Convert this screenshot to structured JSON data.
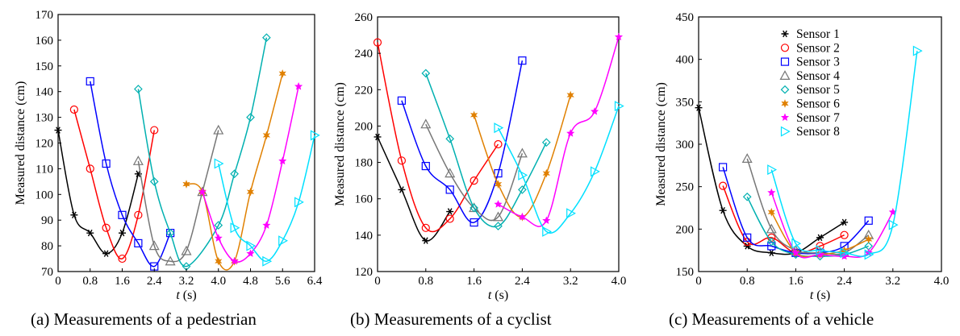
{
  "series_colors": [
    "#000000",
    "#ff0000",
    "#0000ff",
    "#777777",
    "#00b0b0",
    "#e08000",
    "#ff00ff",
    "#00e0ff"
  ],
  "chart_data": [
    {
      "type": "line",
      "caption": "(a) Measurements of a pedestrian",
      "xlabel": "t (s)",
      "ylabel": "Measured distance (cm)",
      "xlim": [
        0,
        6.4
      ],
      "ylim": [
        70,
        170
      ],
      "xticks": [
        "0",
        "0.8",
        "1.6",
        "2.4",
        "3.2",
        "4.0",
        "4.8",
        "5.6",
        "6.4"
      ],
      "yticks": [
        "70",
        "80",
        "90",
        "100",
        "110",
        "120",
        "130",
        "140",
        "150",
        "160",
        "170"
      ],
      "legend": null,
      "series": [
        {
          "marker": "star6",
          "x": [
            0.0,
            0.4,
            0.8,
            1.2,
            1.6,
            2.0
          ],
          "y": [
            125,
            92,
            85,
            77,
            85,
            108
          ]
        },
        {
          "marker": "circle",
          "x": [
            0.4,
            0.8,
            1.2,
            1.6,
            2.0,
            2.4
          ],
          "y": [
            133,
            110,
            87,
            75,
            92,
            125
          ]
        },
        {
          "marker": "square",
          "x": [
            0.8,
            1.2,
            1.6,
            2.0,
            2.4,
            2.8
          ],
          "y": [
            144,
            112,
            92,
            81,
            72,
            85
          ]
        },
        {
          "marker": "triangle-up",
          "x": [
            2.0,
            2.4,
            2.8,
            3.2,
            3.6,
            4.0
          ],
          "y": [
            113,
            80,
            74,
            78,
            101,
            125
          ]
        },
        {
          "marker": "diamond",
          "x": [
            2.0,
            2.4,
            2.8,
            3.2,
            4.0,
            4.4,
            4.8,
            5.2
          ],
          "y": [
            141,
            105,
            85,
            72,
            88,
            108,
            130,
            161
          ]
        },
        {
          "marker": "star",
          "x": [
            3.2,
            3.6,
            4.0,
            4.4,
            4.8,
            5.2,
            5.6
          ],
          "y": [
            104,
            101,
            74,
            74,
            101,
            123,
            147
          ]
        },
        {
          "marker": "star5",
          "x": [
            3.6,
            4.0,
            4.4,
            4.8,
            5.2,
            5.6,
            6.0
          ],
          "y": [
            101,
            83,
            74,
            77,
            88,
            113,
            142
          ]
        },
        {
          "marker": "triangle-right",
          "x": [
            4.0,
            4.4,
            4.8,
            5.2,
            5.6,
            6.0,
            6.4
          ],
          "y": [
            112,
            87,
            80,
            74,
            82,
            97,
            123
          ]
        }
      ]
    },
    {
      "type": "line",
      "caption": "(b) Measurements of a cyclist",
      "xlabel": "t (s)",
      "ylabel": "Measured distance (cm)",
      "xlim": [
        0,
        4.0
      ],
      "ylim": [
        120,
        260
      ],
      "xticks": [
        "0",
        "0.8",
        "1.6",
        "2.4",
        "3.2",
        "4.0"
      ],
      "yticks": [
        "120",
        "140",
        "160",
        "180",
        "200",
        "220",
        "240",
        "260"
      ],
      "legend": null,
      "series": [
        {
          "marker": "star6",
          "x": [
            0.0,
            0.4,
            0.8,
            1.2
          ],
          "y": [
            194,
            165,
            137,
            153
          ]
        },
        {
          "marker": "circle",
          "x": [
            0.0,
            0.4,
            0.8,
            1.2,
            1.6,
            2.0
          ],
          "y": [
            246,
            181,
            144,
            149,
            170,
            190
          ]
        },
        {
          "marker": "square",
          "x": [
            0.4,
            0.8,
            1.2,
            1.6,
            2.0,
            2.4
          ],
          "y": [
            214,
            178,
            165,
            147,
            174,
            236
          ]
        },
        {
          "marker": "triangle-up",
          "x": [
            0.8,
            1.2,
            1.6,
            2.0,
            2.4
          ],
          "y": [
            201,
            174,
            155,
            150,
            185
          ]
        },
        {
          "marker": "diamond",
          "x": [
            0.8,
            1.2,
            1.6,
            2.0,
            2.4,
            2.8
          ],
          "y": [
            229,
            193,
            155,
            145,
            165,
            191
          ]
        },
        {
          "marker": "star",
          "x": [
            1.6,
            2.0,
            2.4,
            2.8,
            3.2
          ],
          "y": [
            206,
            168,
            150,
            174,
            217
          ]
        },
        {
          "marker": "star5",
          "x": [
            2.0,
            2.4,
            2.8,
            3.2,
            3.6,
            4.0
          ],
          "y": [
            157,
            150,
            148,
            196,
            208,
            249
          ]
        },
        {
          "marker": "triangle-right",
          "x": [
            2.0,
            2.4,
            2.8,
            3.2,
            3.6,
            4.0
          ],
          "y": [
            199,
            173,
            142,
            152,
            175,
            211
          ]
        }
      ]
    },
    {
      "type": "line",
      "caption": "(c) Measurements of a vehicle",
      "xlabel": "t (s)",
      "ylabel": "Measured distance (cm)",
      "xlim": [
        0,
        4.0
      ],
      "ylim": [
        150,
        450
      ],
      "xticks": [
        "0",
        "0.8",
        "1.6",
        "2.4",
        "3.2",
        "4.0"
      ],
      "yticks": [
        "150",
        "200",
        "250",
        "300",
        "350",
        "400",
        "450"
      ],
      "legend": {
        "placement": "top-right",
        "entries": [
          "Sensor 1",
          "Sensor 2",
          "Sensor 3",
          "Sensor 4",
          "Sensor 5",
          "Sensor 6",
          "Sensor 7",
          "Sensor 8"
        ]
      },
      "series": [
        {
          "marker": "star6",
          "x": [
            0.0,
            0.4,
            0.8,
            1.2,
            1.6,
            2.0,
            2.4
          ],
          "y": [
            343,
            222,
            180,
            172,
            172,
            190,
            208
          ]
        },
        {
          "marker": "circle",
          "x": [
            0.4,
            0.8,
            1.2,
            1.6,
            2.0,
            2.4
          ],
          "y": [
            251,
            185,
            190,
            172,
            180,
            193
          ]
        },
        {
          "marker": "square",
          "x": [
            0.4,
            0.8,
            1.2,
            1.6,
            2.0,
            2.4,
            2.8
          ],
          "y": [
            273,
            190,
            180,
            172,
            172,
            180,
            210
          ]
        },
        {
          "marker": "triangle-up",
          "x": [
            0.8,
            1.2,
            1.6,
            2.0,
            2.4,
            2.8
          ],
          "y": [
            283,
            200,
            175,
            172,
            172,
            193
          ]
        },
        {
          "marker": "diamond",
          "x": [
            0.8,
            1.2,
            1.6,
            2.0,
            2.4,
            2.8
          ],
          "y": [
            238,
            185,
            170,
            168,
            170,
            180
          ]
        },
        {
          "marker": "star",
          "x": [
            1.2,
            1.6,
            2.0,
            2.4,
            2.8
          ],
          "y": [
            220,
            172,
            170,
            175,
            188
          ]
        },
        {
          "marker": "star5",
          "x": [
            1.2,
            1.6,
            2.0,
            2.4,
            2.8,
            3.2
          ],
          "y": [
            243,
            172,
            170,
            168,
            172,
            220
          ]
        },
        {
          "marker": "triangle-right",
          "x": [
            1.2,
            1.6,
            2.0,
            2.4,
            2.8,
            3.2,
            3.6
          ],
          "y": [
            270,
            183,
            175,
            172,
            170,
            205,
            410
          ]
        }
      ]
    }
  ]
}
